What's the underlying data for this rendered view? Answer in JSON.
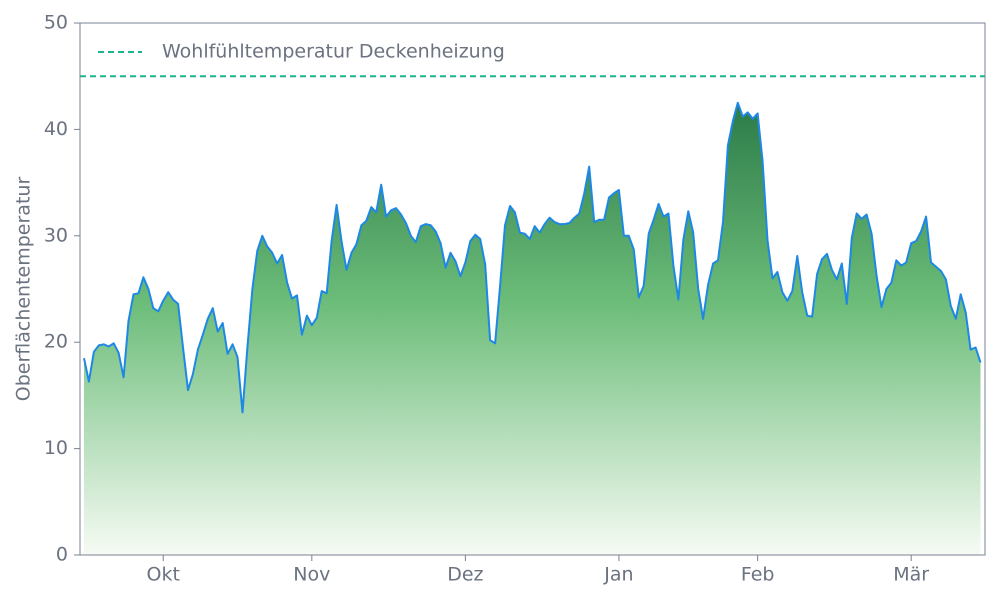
{
  "chart_data": {
    "type": "area",
    "ylabel": "Oberflächentemperatur",
    "xlim": [
      -16.8,
      165.9
    ],
    "xticks": [
      {
        "value": 0,
        "label": "Okt"
      },
      {
        "value": 30,
        "label": "Nov"
      },
      {
        "value": 61,
        "label": "Dez"
      },
      {
        "value": 92,
        "label": "Jan"
      },
      {
        "value": 120,
        "label": "Feb"
      },
      {
        "value": 151,
        "label": "Mär"
      }
    ],
    "ylim": [
      0,
      50
    ],
    "yticks": [
      0,
      10,
      20,
      30,
      40,
      50
    ],
    "grid": false,
    "legend": "upper left",
    "reference_line": {
      "value": 45,
      "label": "Wohlfühltemperatur Deckenheizung",
      "color": "#1bb58a"
    },
    "series": [
      {
        "color": "#1e88e5",
        "x": [
          -16,
          -15,
          -14,
          -13,
          -12,
          -11,
          -10,
          -9,
          -8,
          -7,
          -6,
          -5,
          -4,
          -3,
          -2,
          -1,
          0,
          1,
          2,
          3,
          4,
          5,
          6,
          7,
          8,
          9,
          10,
          11,
          12,
          13,
          14,
          15,
          16,
          17,
          18,
          19,
          20,
          21,
          22,
          23,
          24,
          25,
          26,
          27,
          28,
          29,
          30,
          31,
          32,
          33,
          34,
          35,
          36,
          37,
          38,
          39,
          40,
          41,
          42,
          43,
          44,
          45,
          46,
          47,
          48,
          49,
          50,
          51,
          52,
          53,
          54,
          55,
          56,
          57,
          58,
          59,
          60,
          61,
          62,
          63,
          64,
          65,
          66,
          67,
          68,
          69,
          70,
          71,
          72,
          73,
          74,
          75,
          76,
          77,
          78,
          79,
          80,
          81,
          82,
          83,
          84,
          85,
          86,
          87,
          88,
          89,
          90,
          91,
          92,
          93,
          94,
          95,
          96,
          97,
          98,
          99,
          100,
          101,
          102,
          103,
          104,
          105,
          106,
          107,
          108,
          109,
          110,
          111,
          112,
          113,
          114,
          115,
          116,
          117,
          118,
          119,
          120,
          121,
          122,
          123,
          124,
          125,
          126,
          127,
          128,
          129,
          130,
          131,
          132,
          133,
          134,
          135,
          136,
          137,
          138,
          139,
          140,
          141,
          142,
          143,
          144,
          145,
          146,
          147,
          148,
          149,
          150,
          151,
          152,
          153,
          154,
          155,
          156,
          157,
          158,
          159,
          160,
          161,
          162,
          163,
          164,
          165
        ],
        "values": [
          18.5,
          16.3,
          19.1,
          19.7,
          19.8,
          19.6,
          19.9,
          19,
          16.7,
          22,
          24.5,
          24.6,
          26.1,
          25,
          23.2,
          22.9,
          23.9,
          24.7,
          24,
          23.6,
          19.5,
          15.5,
          17,
          19.3,
          20.7,
          22.2,
          23.2,
          21,
          21.8,
          18.9,
          19.8,
          18.6,
          13.4,
          19.5,
          25,
          28.6,
          30,
          29,
          28.4,
          27.4,
          28.2,
          25.6,
          24.1,
          24.4,
          20.7,
          22.5,
          21.6,
          22.3,
          24.8,
          24.6,
          29.5,
          32.9,
          29.5,
          26.8,
          28.4,
          29.2,
          31,
          31.4,
          32.7,
          32.2,
          34.8,
          31.8,
          32.4,
          32.6,
          32,
          31.2,
          30,
          29.4,
          30.9,
          31.1,
          31,
          30.4,
          29.3,
          27,
          28.4,
          27.6,
          26.2,
          27.5,
          29.5,
          30.1,
          29.7,
          27.3,
          20.2,
          19.9,
          25.3,
          31,
          32.8,
          32.2,
          30.3,
          30.2,
          29.7,
          30.9,
          30.3,
          31.1,
          31.7,
          31.3,
          31.1,
          31.1,
          31.2,
          31.7,
          32.1,
          34,
          36.5,
          31.3,
          31.5,
          31.5,
          33.6,
          34,
          34.3,
          30,
          30,
          28.7,
          24.2,
          25.3,
          30.2,
          31.5,
          33,
          31.8,
          32.1,
          27.2,
          24,
          29.6,
          32.3,
          30.3,
          25,
          22.2,
          25.4,
          27.4,
          27.7,
          31.3,
          38.5,
          40.8,
          42.5,
          41.2,
          41.6,
          41,
          41.5,
          37,
          29.6,
          26,
          26.6,
          24.7,
          23.9,
          24.8,
          28.1,
          24.7,
          22.5,
          22.4,
          26.4,
          27.8,
          28.3,
          26.8,
          25.9,
          27.4,
          23.6,
          29.8,
          32.1,
          31.6,
          32,
          30.2,
          26.3,
          23.3,
          25,
          25.6,
          27.7,
          27.2,
          27.5,
          29.3,
          29.5,
          30.4,
          31.8,
          27.5,
          27.1,
          26.7,
          25.9,
          23.4,
          22.2,
          24.5,
          22.8,
          19.3,
          19.5,
          18.1
        ]
      }
    ]
  }
}
